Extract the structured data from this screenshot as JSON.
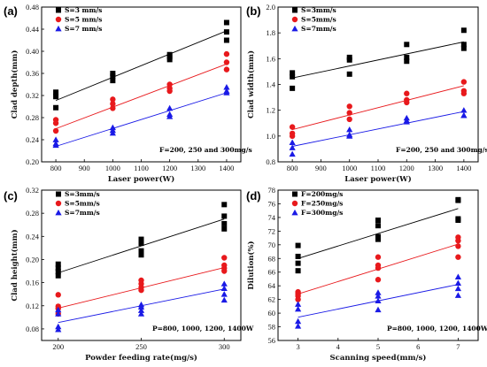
{
  "chart_data": [
    {
      "panel_label": "(a)",
      "type": "scatter",
      "xlabel": "Laser power(W)",
      "ylabel": "Clad depth(mm)",
      "xlim": [
        750,
        1450
      ],
      "ylim": [
        0.2,
        0.48
      ],
      "xticks": [
        "800",
        "900",
        "1000",
        "1100",
        "1200",
        "1300",
        "1400"
      ],
      "yticks": [
        "0.20",
        "0.24",
        "0.28",
        "0.32",
        "0.36",
        "0.40",
        "0.44",
        "0.48"
      ],
      "annotation": "F=200, 250 and 300mg/s",
      "legend_position": "top-left",
      "series": [
        {
          "name": "S=3 mm/s",
          "color": "#000000",
          "marker": "square",
          "points": [
            [
              800,
              0.326
            ],
            [
              800,
              0.318
            ],
            [
              800,
              0.298
            ],
            [
              1000,
              0.36
            ],
            [
              1000,
              0.355
            ],
            [
              1000,
              0.347
            ],
            [
              1200,
              0.394
            ],
            [
              1200,
              0.39
            ],
            [
              1200,
              0.385
            ],
            [
              1400,
              0.452
            ],
            [
              1400,
              0.435
            ],
            [
              1400,
              0.42
            ]
          ],
          "fit": [
            [
              800,
              0.311
            ],
            [
              1400,
              0.437
            ]
          ]
        },
        {
          "name": "S=5 mm/s",
          "color": "#e8191c",
          "marker": "circle",
          "points": [
            [
              800,
              0.276
            ],
            [
              800,
              0.27
            ],
            [
              800,
              0.256
            ],
            [
              1000,
              0.313
            ],
            [
              1000,
              0.305
            ],
            [
              1000,
              0.297
            ],
            [
              1200,
              0.34
            ],
            [
              1200,
              0.333
            ],
            [
              1200,
              0.328
            ],
            [
              1400,
              0.395
            ],
            [
              1400,
              0.38
            ],
            [
              1400,
              0.367
            ]
          ],
          "fit": [
            [
              800,
              0.26
            ],
            [
              1400,
              0.377
            ]
          ]
        },
        {
          "name": "S=7 mm/s",
          "color": "#1a1ae6",
          "marker": "triangle",
          "points": [
            [
              800,
              0.24
            ],
            [
              800,
              0.233
            ],
            [
              800,
              0.23
            ],
            [
              1000,
              0.262
            ],
            [
              1000,
              0.257
            ],
            [
              1000,
              0.252
            ],
            [
              1200,
              0.297
            ],
            [
              1200,
              0.286
            ],
            [
              1200,
              0.282
            ],
            [
              1400,
              0.335
            ],
            [
              1400,
              0.328
            ],
            [
              1400,
              0.325
            ]
          ],
          "fit": [
            [
              800,
              0.228
            ],
            [
              1400,
              0.325
            ]
          ]
        }
      ]
    },
    {
      "panel_label": "(b)",
      "type": "scatter",
      "xlabel": "Laser power(W)",
      "ylabel": "Clad width(mm)",
      "xlim": [
        750,
        1450
      ],
      "ylim": [
        0.8,
        2.0
      ],
      "xticks": [
        "800",
        "900",
        "1000",
        "1100",
        "1200",
        "1300",
        "1400"
      ],
      "yticks": [
        "0.8",
        "1.0",
        "1.2",
        "1.4",
        "1.6",
        "1.8",
        "2.0"
      ],
      "annotation": "F=200, 250 and 300mg/s",
      "legend_position": "top-left",
      "series": [
        {
          "name": "S=3mm/s",
          "color": "#000000",
          "marker": "square",
          "points": [
            [
              800,
              1.49
            ],
            [
              800,
              1.46
            ],
            [
              800,
              1.37
            ],
            [
              1000,
              1.61
            ],
            [
              1000,
              1.59
            ],
            [
              1000,
              1.48
            ],
            [
              1200,
              1.71
            ],
            [
              1200,
              1.61
            ],
            [
              1200,
              1.58
            ],
            [
              1400,
              1.82
            ],
            [
              1400,
              1.71
            ],
            [
              1400,
              1.68
            ]
          ],
          "fit": [
            [
              800,
              1.45
            ],
            [
              1400,
              1.73
            ]
          ]
        },
        {
          "name": "S=5mm/s",
          "color": "#e8191c",
          "marker": "circle",
          "points": [
            [
              800,
              1.07
            ],
            [
              800,
              1.02
            ],
            [
              800,
              1.0
            ],
            [
              1000,
              1.23
            ],
            [
              1000,
              1.18
            ],
            [
              1000,
              1.13
            ],
            [
              1200,
              1.33
            ],
            [
              1200,
              1.28
            ],
            [
              1200,
              1.26
            ],
            [
              1400,
              1.42
            ],
            [
              1400,
              1.35
            ],
            [
              1400,
              1.33
            ]
          ],
          "fit": [
            [
              800,
              1.05
            ],
            [
              1400,
              1.39
            ]
          ]
        },
        {
          "name": "S=7mm/s",
          "color": "#1a1ae6",
          "marker": "triangle",
          "points": [
            [
              800,
              0.95
            ],
            [
              800,
              0.91
            ],
            [
              800,
              0.86
            ],
            [
              1000,
              1.05
            ],
            [
              1000,
              1.01
            ],
            [
              1000,
              1.0
            ],
            [
              1200,
              1.14
            ],
            [
              1200,
              1.12
            ],
            [
              1200,
              1.11
            ],
            [
              1400,
              1.2
            ],
            [
              1400,
              1.16
            ],
            [
              1400,
              1.16
            ]
          ],
          "fit": [
            [
              800,
              0.92
            ],
            [
              1400,
              1.19
            ]
          ]
        }
      ]
    },
    {
      "panel_label": "(c)",
      "type": "scatter",
      "xlabel": "Powder feeding rate(mg/s)",
      "ylabel": "Clad height(mm)",
      "xlim": [
        190,
        310
      ],
      "ylim": [
        0.06,
        0.32
      ],
      "xticks": [
        "200",
        "250",
        "300"
      ],
      "yticks": [
        "0.08",
        "0.12",
        "0.16",
        "0.20",
        "0.24",
        "0.28",
        "0.32"
      ],
      "annotation": "P=800, 1000, 1200, 1400W",
      "legend_position": "top-left",
      "series": [
        {
          "name": "S=3mm/s",
          "color": "#000000",
          "marker": "square",
          "points": [
            [
              200,
              0.192
            ],
            [
              200,
              0.185
            ],
            [
              200,
              0.179
            ],
            [
              200,
              0.172
            ],
            [
              250,
              0.235
            ],
            [
              250,
              0.228
            ],
            [
              250,
              0.215
            ],
            [
              250,
              0.208
            ],
            [
              300,
              0.295
            ],
            [
              300,
              0.275
            ],
            [
              300,
              0.262
            ],
            [
              300,
              0.253
            ]
          ],
          "fit": [
            [
              200,
              0.177
            ],
            [
              300,
              0.27
            ]
          ]
        },
        {
          "name": "S=5mm/s",
          "color": "#e8191c",
          "marker": "circle",
          "points": [
            [
              200,
              0.139
            ],
            [
              200,
              0.119
            ],
            [
              200,
              0.115
            ],
            [
              200,
              0.106
            ],
            [
              250,
              0.164
            ],
            [
              250,
              0.158
            ],
            [
              250,
              0.152
            ],
            [
              250,
              0.147
            ],
            [
              300,
              0.203
            ],
            [
              300,
              0.19
            ],
            [
              300,
              0.185
            ],
            [
              300,
              0.18
            ]
          ],
          "fit": [
            [
              200,
              0.116
            ],
            [
              300,
              0.186
            ]
          ]
        },
        {
          "name": "S=7mm/s",
          "color": "#1a1ae6",
          "marker": "triangle",
          "points": [
            [
              200,
              0.113
            ],
            [
              200,
              0.106
            ],
            [
              200,
              0.084
            ],
            [
              200,
              0.079
            ],
            [
              250,
              0.122
            ],
            [
              250,
              0.118
            ],
            [
              250,
              0.112
            ],
            [
              250,
              0.106
            ],
            [
              300,
              0.158
            ],
            [
              300,
              0.15
            ],
            [
              300,
              0.14
            ],
            [
              300,
              0.13
            ]
          ],
          "fit": [
            [
              200,
              0.091
            ],
            [
              300,
              0.149
            ]
          ]
        }
      ]
    },
    {
      "panel_label": "(d)",
      "type": "scatter",
      "xlabel": "Scanning speed(mm/s)",
      "ylabel": "Dilution(%)",
      "xlim": [
        2.5,
        7.5
      ],
      "ylim": [
        56,
        78
      ],
      "xticks": [
        "3",
        "4",
        "5",
        "6",
        "7"
      ],
      "yticks": [
        "56",
        "58",
        "60",
        "62",
        "64",
        "66",
        "68",
        "70",
        "72",
        "74",
        "76",
        "78"
      ],
      "annotation": "P=800, 1000, 1200, 1400W",
      "legend_position": "top-left",
      "series": [
        {
          "name": "F=200mg/s",
          "color": "#000000",
          "marker": "square",
          "points": [
            [
              3,
              69.9
            ],
            [
              3,
              68.3
            ],
            [
              3,
              67.3
            ],
            [
              3,
              66.2
            ],
            [
              5,
              73.6
            ],
            [
              5,
              72.8
            ],
            [
              5,
              71.2
            ],
            [
              5,
              70.8
            ],
            [
              7,
              76.6
            ],
            [
              7,
              76.5
            ],
            [
              7,
              73.8
            ],
            [
              7,
              73.6
            ]
          ],
          "fit": [
            [
              3,
              68.0
            ],
            [
              7,
              75.3
            ]
          ]
        },
        {
          "name": "F=250mg/s",
          "color": "#e8191c",
          "marker": "circle",
          "points": [
            [
              3,
              63.1
            ],
            [
              3,
              62.8
            ],
            [
              3,
              62.5
            ],
            [
              3,
              62.0
            ],
            [
              5,
              68.2
            ],
            [
              5,
              67.0
            ],
            [
              5,
              66.6
            ],
            [
              5,
              64.9
            ],
            [
              7,
              71.1
            ],
            [
              7,
              70.6
            ],
            [
              7,
              69.8
            ],
            [
              7,
              68.2
            ]
          ],
          "fit": [
            [
              3,
              62.8
            ],
            [
              7,
              70.1
            ]
          ]
        },
        {
          "name": "F=300mg/s",
          "color": "#1a1ae6",
          "marker": "triangle",
          "points": [
            [
              3,
              61.3
            ],
            [
              3,
              60.6
            ],
            [
              3,
              58.8
            ],
            [
              3,
              58.1
            ],
            [
              5,
              63.0
            ],
            [
              5,
              62.5
            ],
            [
              5,
              61.8
            ],
            [
              5,
              60.5
            ],
            [
              7,
              65.3
            ],
            [
              7,
              64.4
            ],
            [
              7,
              63.6
            ],
            [
              7,
              62.6
            ]
          ],
          "fit": [
            [
              3,
              59.4
            ],
            [
              7,
              64.2
            ]
          ]
        }
      ]
    }
  ]
}
